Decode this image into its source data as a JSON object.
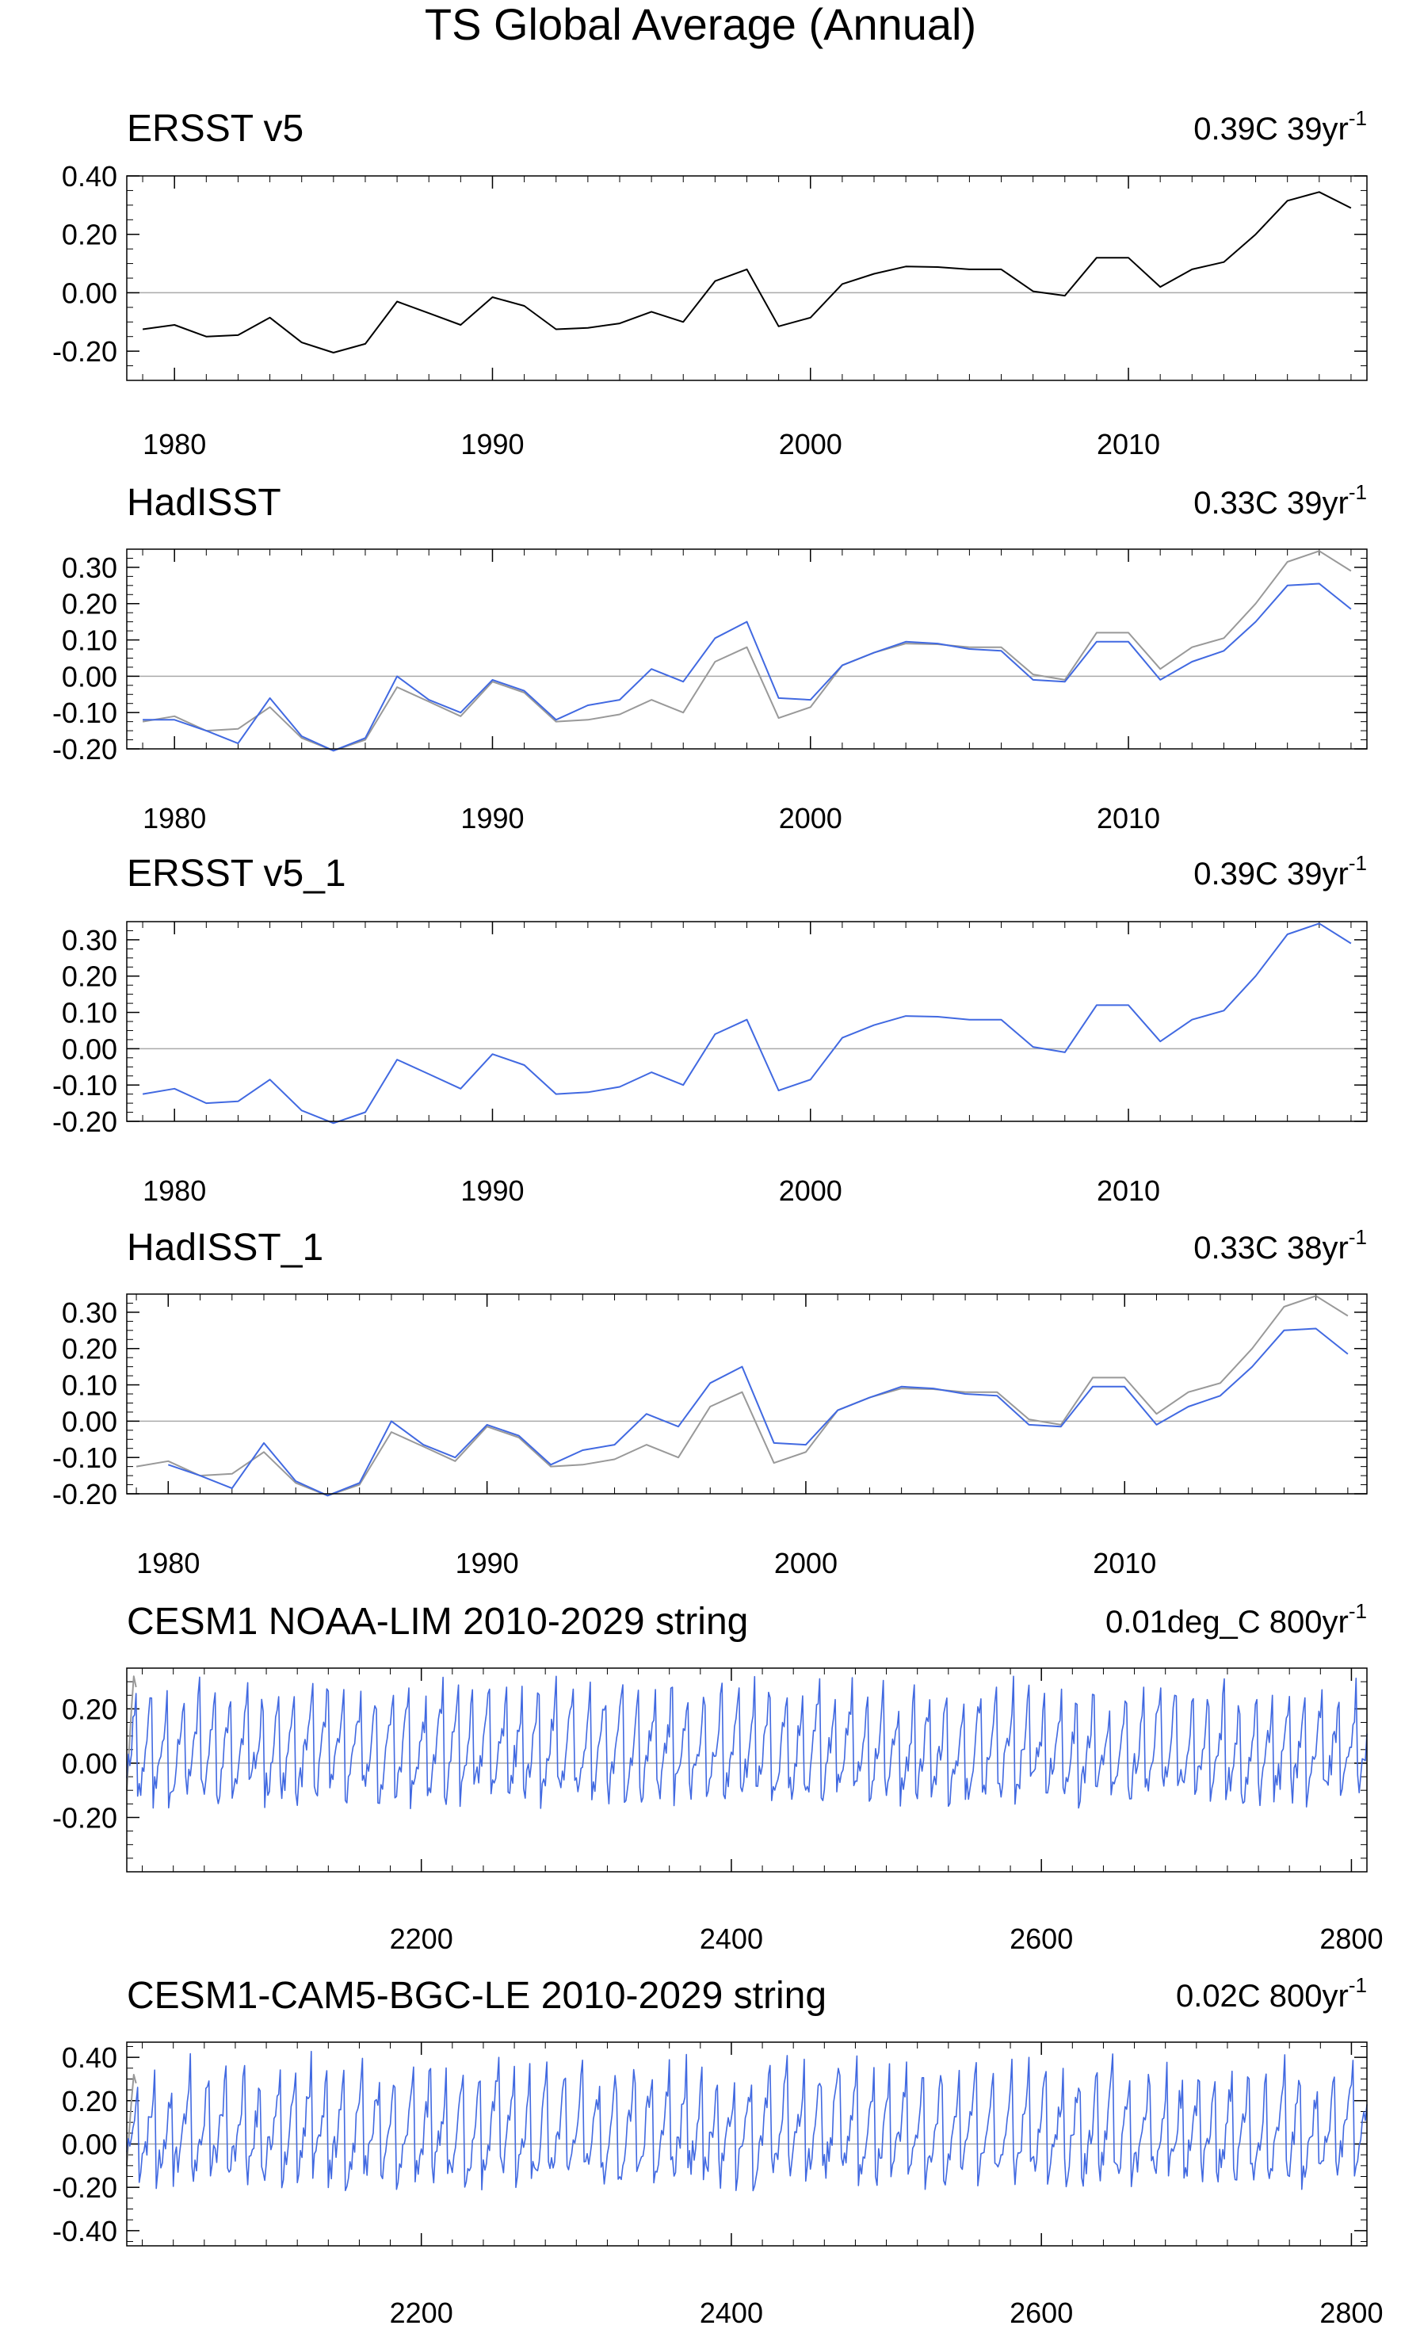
{
  "title": "TS Global Average (Annual)",
  "colors": {
    "observed": "#000000",
    "reference": "#999999",
    "model": "#4169e1",
    "zero": "#aaaaaa"
  },
  "chart_data": [
    {
      "type": "line",
      "title": "ERSST v5",
      "trend_label": "0.39C 39yr",
      "trend_exp": "-1",
      "xlim": [
        1978.5,
        2017.5
      ],
      "ylim": [
        -0.3,
        0.4
      ],
      "xticks": [
        1980,
        1990,
        2000,
        2010
      ],
      "xtick_labels": [
        "1980",
        "1990",
        "2000",
        "2010"
      ],
      "yticks": [
        0.4,
        0.2,
        0,
        -0.2
      ],
      "ytick_labels": [
        "0.40",
        "0.20",
        "0.00",
        "-0.20"
      ],
      "x_start": 1979,
      "series": [
        {
          "name": "ERSST v5",
          "style": "observed",
          "values": [
            -0.125,
            -0.11,
            -0.15,
            -0.145,
            -0.085,
            -0.17,
            -0.205,
            -0.175,
            -0.03,
            -0.07,
            -0.11,
            -0.015,
            -0.045,
            -0.125,
            -0.12,
            -0.105,
            -0.065,
            -0.1,
            0.04,
            0.08,
            -0.115,
            -0.085,
            0.03,
            0.065,
            0.09,
            0.088,
            0.08,
            0.08,
            0.005,
            -0.01,
            0.12,
            0.12,
            0.02,
            0.08,
            0.105,
            0.2,
            0.315,
            0.345,
            0.29
          ]
        }
      ]
    },
    {
      "type": "line",
      "title": "HadISST",
      "trend_label": "0.33C 39yr",
      "trend_exp": "-1",
      "xlim": [
        1978.5,
        2017.5
      ],
      "ylim": [
        -0.2,
        0.35
      ],
      "xticks": [
        1980,
        1990,
        2000,
        2010
      ],
      "xtick_labels": [
        "1980",
        "1990",
        "2000",
        "2010"
      ],
      "yticks": [
        0.3,
        0.2,
        0.1,
        0,
        -0.1,
        -0.2
      ],
      "ytick_labels": [
        "0.30",
        "0.20",
        "0.10",
        "0.00",
        "-0.10",
        "-0.20"
      ],
      "x_start": 1979,
      "series": [
        {
          "name": "ERSST v5",
          "style": "reference",
          "values": [
            -0.125,
            -0.11,
            -0.15,
            -0.145,
            -0.085,
            -0.17,
            -0.205,
            -0.175,
            -0.03,
            -0.07,
            -0.11,
            -0.015,
            -0.045,
            -0.125,
            -0.12,
            -0.105,
            -0.065,
            -0.1,
            0.04,
            0.08,
            -0.115,
            -0.085,
            0.03,
            0.065,
            0.09,
            0.088,
            0.08,
            0.08,
            0.005,
            -0.01,
            0.12,
            0.12,
            0.02,
            0.08,
            0.105,
            0.2,
            0.315,
            0.345,
            0.29
          ]
        },
        {
          "name": "HadISST",
          "style": "model",
          "values": [
            -0.12,
            -0.12,
            -0.15,
            -0.185,
            -0.06,
            -0.165,
            -0.205,
            -0.17,
            0,
            -0.065,
            -0.1,
            -0.01,
            -0.04,
            -0.12,
            -0.08,
            -0.065,
            0.02,
            -0.015,
            0.105,
            0.15,
            -0.06,
            -0.065,
            0.03,
            0.065,
            0.095,
            0.09,
            0.075,
            0.07,
            -0.01,
            -0.015,
            0.095,
            0.095,
            -0.01,
            0.04,
            0.07,
            0.15,
            0.25,
            0.255,
            0.185
          ]
        }
      ]
    },
    {
      "type": "line",
      "title": "ERSST v5_1",
      "trend_label": "0.39C 39yr",
      "trend_exp": "-1",
      "xlim": [
        1978.5,
        2017.5
      ],
      "ylim": [
        -0.2,
        0.35
      ],
      "xticks": [
        1980,
        1990,
        2000,
        2010
      ],
      "xtick_labels": [
        "1980",
        "1990",
        "2000",
        "2010"
      ],
      "yticks": [
        0.3,
        0.2,
        0.1,
        0,
        -0.1,
        -0.2
      ],
      "ytick_labels": [
        "0.30",
        "0.20",
        "0.10",
        "0.00",
        "-0.10",
        "-0.20"
      ],
      "x_start": 1979,
      "series": [
        {
          "name": "ERSST v5_1",
          "style": "model",
          "values": [
            -0.125,
            -0.11,
            -0.15,
            -0.145,
            -0.085,
            -0.17,
            -0.205,
            -0.175,
            -0.03,
            -0.07,
            -0.11,
            -0.015,
            -0.045,
            -0.125,
            -0.12,
            -0.105,
            -0.065,
            -0.1,
            0.04,
            0.08,
            -0.115,
            -0.085,
            0.03,
            0.065,
            0.09,
            0.088,
            0.08,
            0.08,
            0.005,
            -0.01,
            0.12,
            0.12,
            0.02,
            0.08,
            0.105,
            0.2,
            0.315,
            0.345,
            0.29
          ]
        }
      ]
    },
    {
      "type": "line",
      "title": "HadISST_1",
      "trend_label": "0.33C 38yr",
      "trend_exp": "-1",
      "xlim": [
        1978.7,
        2017.6
      ],
      "ylim": [
        -0.2,
        0.35
      ],
      "xticks": [
        1980,
        1990,
        2000,
        2010
      ],
      "xtick_labels": [
        "1980",
        "1990",
        "2000",
        "2010"
      ],
      "yticks": [
        0.3,
        0.2,
        0.1,
        0,
        -0.1,
        -0.2
      ],
      "ytick_labels": [
        "0.30",
        "0.20",
        "0.10",
        "0.00",
        "-0.10",
        "-0.20"
      ],
      "series": [
        {
          "name": "ERSST v5",
          "style": "reference",
          "x_start": 1979,
          "values": [
            -0.125,
            -0.11,
            -0.15,
            -0.145,
            -0.085,
            -0.17,
            -0.205,
            -0.175,
            -0.03,
            -0.07,
            -0.11,
            -0.015,
            -0.045,
            -0.125,
            -0.12,
            -0.105,
            -0.065,
            -0.1,
            0.04,
            0.08,
            -0.115,
            -0.085,
            0.03,
            0.065,
            0.09,
            0.088,
            0.08,
            0.08,
            0.005,
            -0.01,
            0.12,
            0.12,
            0.02,
            0.08,
            0.105,
            0.2,
            0.315,
            0.345,
            0.29
          ]
        },
        {
          "name": "HadISST_1",
          "style": "model",
          "x_start": 1980,
          "values": [
            -0.12,
            -0.15,
            -0.185,
            -0.06,
            -0.165,
            -0.205,
            -0.17,
            0,
            -0.065,
            -0.1,
            -0.01,
            -0.04,
            -0.12,
            -0.08,
            -0.065,
            0.02,
            -0.015,
            0.105,
            0.15,
            -0.06,
            -0.065,
            0.03,
            0.065,
            0.095,
            0.09,
            0.075,
            0.07,
            -0.01,
            -0.015,
            0.095,
            0.095,
            -0.01,
            0.04,
            0.07,
            0.15,
            0.25,
            0.255,
            0.185
          ]
        }
      ]
    },
    {
      "type": "line",
      "title": "CESM1 NOAA-LIM 2010-2029 string",
      "trend_label": "0.01deg_C 800yr",
      "trend_exp": "-1",
      "xlim": [
        2010,
        2810
      ],
      "ylim": [
        -0.4,
        0.35
      ],
      "xticks": [
        2200,
        2400,
        2600,
        2800
      ],
      "xtick_labels": [
        "2200",
        "2400",
        "2600",
        "2800"
      ],
      "yticks": [
        0.2,
        0,
        -0.2
      ],
      "ytick_labels": [
        "0.20",
        "0.00",
        "-0.20"
      ],
      "synthetic": {
        "seed": 11,
        "ref_seed": 7,
        "amp": 0.2,
        "period": 10.7,
        "noise": 0.06,
        "min": -0.39,
        "max": 0.32,
        "ref_end": 2016
      }
    },
    {
      "type": "line",
      "title": "CESM1-CAM5-BGC-LE 2010-2029 string",
      "trend_label": "0.02C 800yr",
      "trend_exp": "-1",
      "xlim": [
        2010,
        2810
      ],
      "ylim": [
        -0.47,
        0.47
      ],
      "xticks": [
        2200,
        2400,
        2600,
        2800
      ],
      "xtick_labels": [
        "2200",
        "2400",
        "2600",
        "2800"
      ],
      "yticks": [
        0.4,
        0.2,
        0,
        -0.2,
        -0.4
      ],
      "ytick_labels": [
        "0.40",
        "0.20",
        "0.00",
        "-0.20",
        "-0.40"
      ],
      "synthetic": {
        "seed": 23,
        "ref_seed": 7,
        "amp": 0.25,
        "period": 11.3,
        "noise": 0.08,
        "min": -0.46,
        "max": 0.45,
        "ref_end": 2016
      }
    }
  ]
}
